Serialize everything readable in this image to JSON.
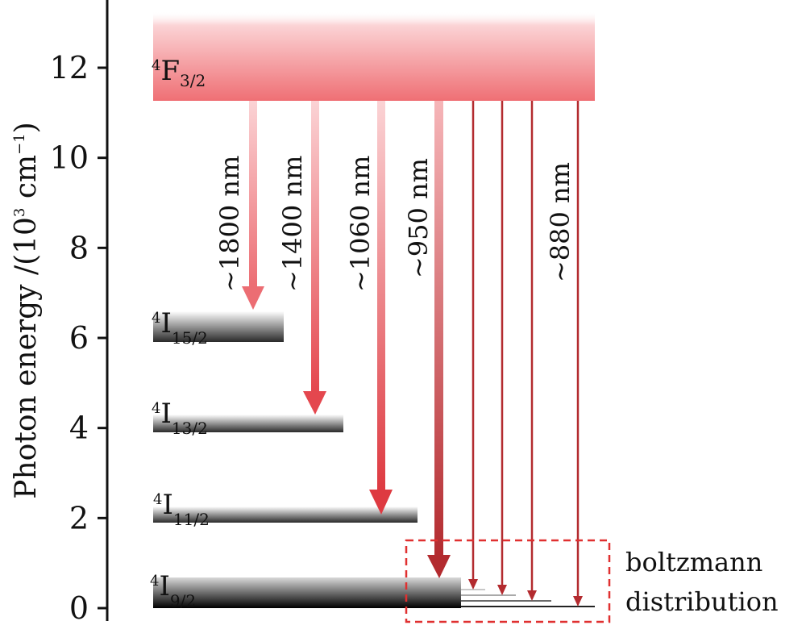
{
  "diagram": {
    "axis_title": {
      "text_main": "Photon energy /(10",
      "sup1": "3",
      "text_mid": " cm",
      "sup2": "−1",
      "text_end": ")"
    },
    "y_axis": {
      "min": 0,
      "max": 13,
      "ticks": [
        "0",
        "2",
        "4",
        "6",
        "8",
        "10",
        "12"
      ]
    },
    "levels": [
      {
        "id": "F32",
        "sup": "4",
        "letter": "F",
        "sub": "3/2",
        "energy": 11.3,
        "color": "#e8525a"
      },
      {
        "id": "I152",
        "sup": "4",
        "letter": "I",
        "sub": "15/2",
        "energy": 5.9,
        "color": "#3a3a3a"
      },
      {
        "id": "I132",
        "sup": "4",
        "letter": "I",
        "sub": "13/2",
        "energy": 3.95,
        "color": "#3a3a3a"
      },
      {
        "id": "I112",
        "sup": "4",
        "letter": "I",
        "sub": "11/2",
        "energy": 1.95,
        "color": "#3a3a3a"
      },
      {
        "id": "I92",
        "sup": "4",
        "letter": "I",
        "sub": "9/2",
        "energy": 0.0,
        "color": "#1a1a1a"
      }
    ],
    "transitions": [
      {
        "label": "~1800 nm",
        "target_energy": 6.5
      },
      {
        "label": "~1400 nm",
        "target_energy": 4.2
      },
      {
        "label": "~1060 nm",
        "target_energy": 2.15
      },
      {
        "label": "~950 nm",
        "target_energy": 0.65
      },
      {
        "label": "",
        "target_energy": 0.45
      },
      {
        "label": "",
        "target_energy": 0.35
      },
      {
        "label": "",
        "target_energy": 0.2
      },
      {
        "label": "~880 nm",
        "target_energy": 0.05
      }
    ],
    "boltzmann_label_line1": "boltzmann",
    "boltzmann_label_line2": "distribution",
    "colors": {
      "upper_band": "#ef6f74",
      "arrow_light": "#f2a5a8",
      "arrow_mid": "#e8525a",
      "arrow_dark": "#b32b2f",
      "dash_box": "#e03030"
    }
  }
}
